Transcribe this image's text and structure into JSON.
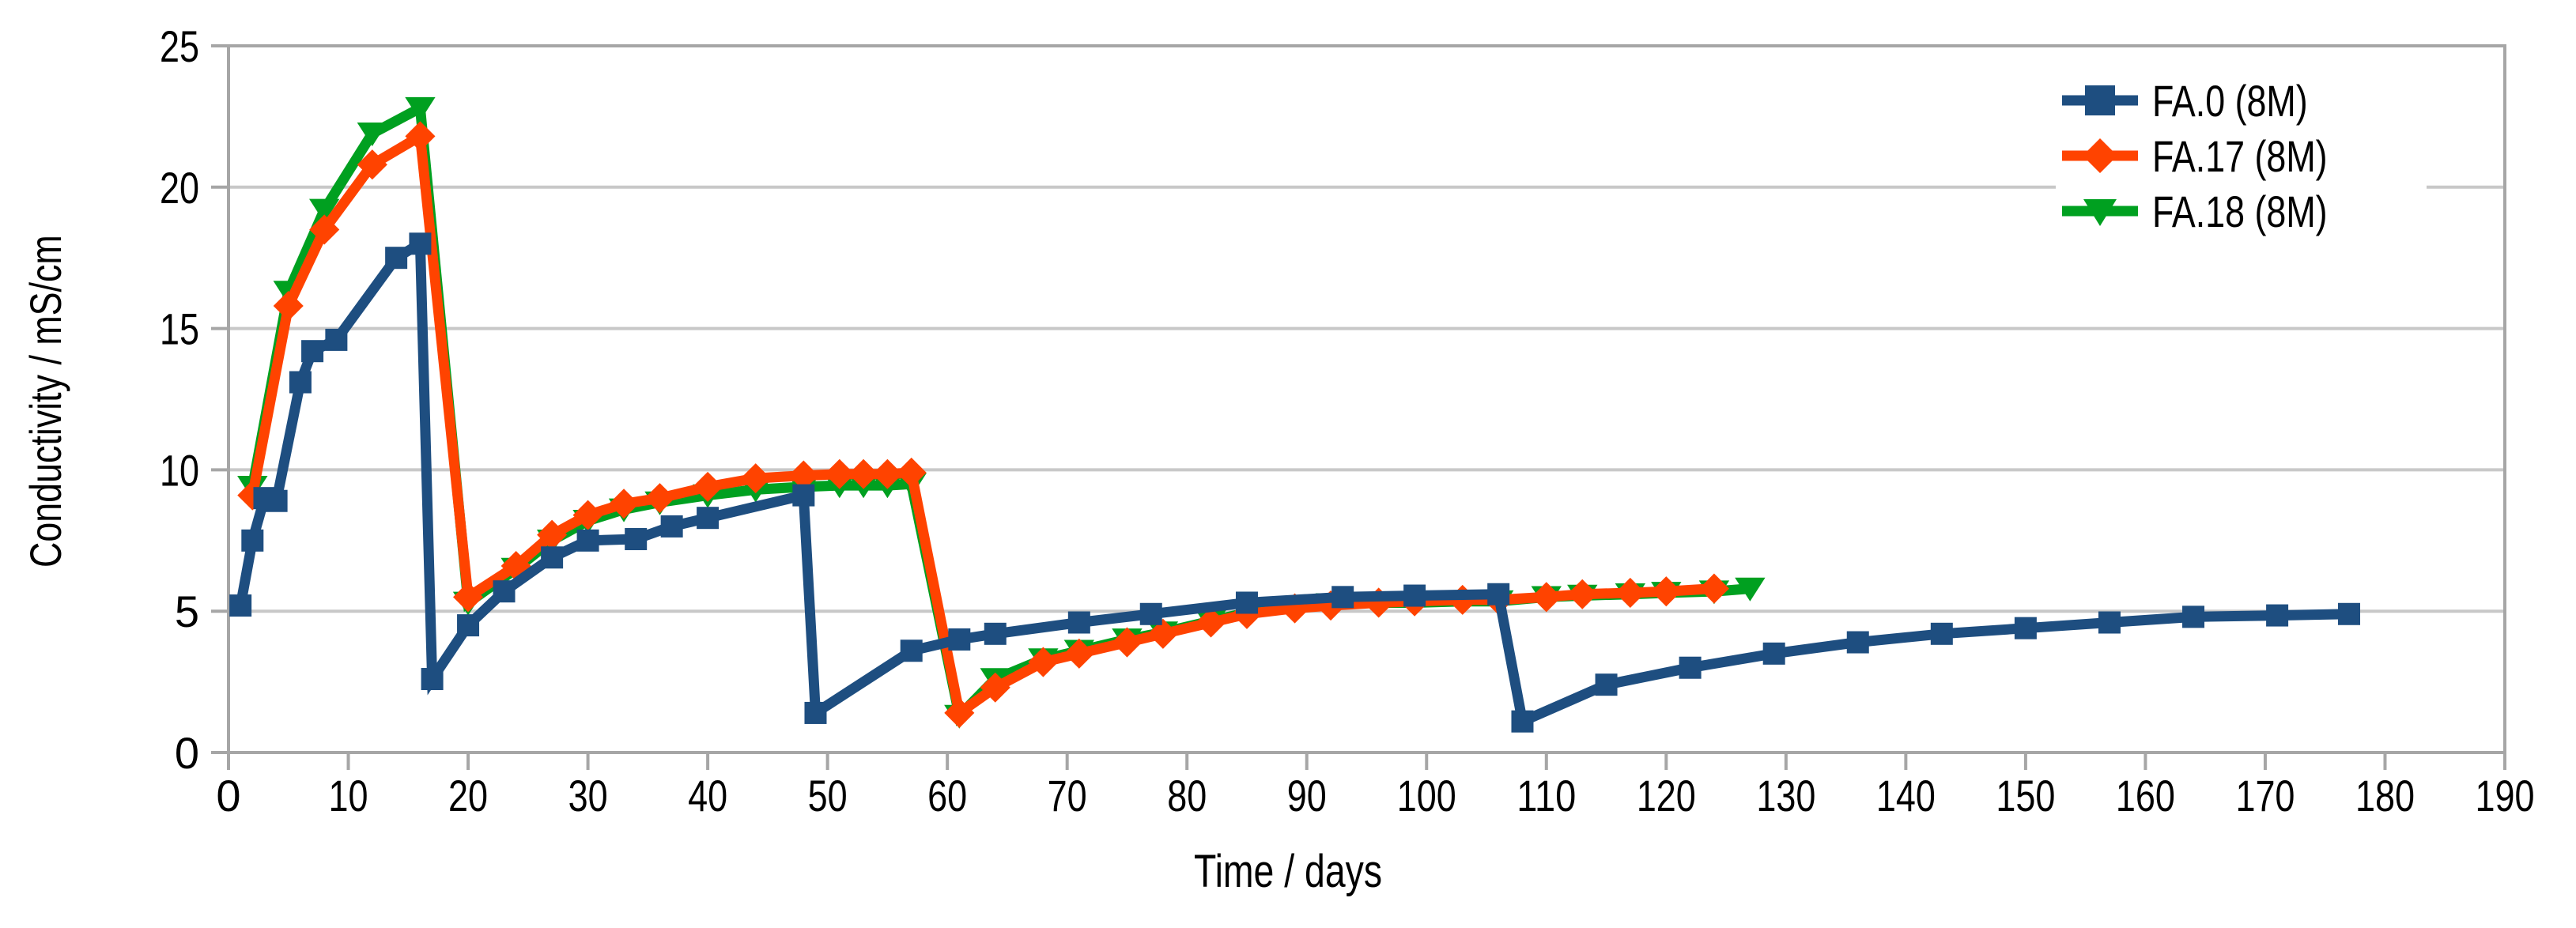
{
  "chart_data": {
    "type": "line",
    "title": "",
    "xlabel": "Time / days",
    "ylabel": "Conductivity / mS/cm",
    "xlim": [
      0,
      190
    ],
    "ylim": [
      0,
      25
    ],
    "x_ticks": [
      0,
      10,
      20,
      30,
      40,
      50,
      60,
      70,
      80,
      90,
      100,
      110,
      120,
      130,
      140,
      150,
      160,
      170,
      180,
      190
    ],
    "y_ticks": [
      0,
      5,
      10,
      15,
      20,
      25
    ],
    "grid": "horizontal-only",
    "legend_position": "top-right-inside",
    "series": [
      {
        "name": "FA.0 (8M)",
        "color": "#1E4E80",
        "marker": "square",
        "points": [
          [
            1,
            5.2
          ],
          [
            2,
            7.5
          ],
          [
            3,
            9.0
          ],
          [
            4,
            8.9
          ],
          [
            6,
            13.1
          ],
          [
            7,
            14.2
          ],
          [
            9,
            14.6
          ],
          [
            14,
            17.5
          ],
          [
            16,
            18.0
          ],
          [
            17,
            2.6
          ],
          [
            20,
            4.5
          ],
          [
            23,
            5.7
          ],
          [
            27,
            6.9
          ],
          [
            30,
            7.5
          ],
          [
            34,
            7.55
          ],
          [
            37,
            8.0
          ],
          [
            40,
            8.3
          ],
          [
            48,
            9.1
          ],
          [
            49,
            1.4
          ],
          [
            57,
            3.6
          ],
          [
            61,
            4.0
          ],
          [
            64,
            4.2
          ],
          [
            71,
            4.6
          ],
          [
            77,
            4.9
          ],
          [
            85,
            5.3
          ],
          [
            93,
            5.5
          ],
          [
            99,
            5.55
          ],
          [
            106,
            5.6
          ],
          [
            108,
            1.1
          ],
          [
            115,
            2.4
          ],
          [
            122,
            3.0
          ],
          [
            129,
            3.5
          ],
          [
            136,
            3.9
          ],
          [
            143,
            4.2
          ],
          [
            150,
            4.4
          ],
          [
            157,
            4.6
          ],
          [
            164,
            4.8
          ],
          [
            171,
            4.85
          ],
          [
            177,
            4.9
          ]
        ]
      },
      {
        "name": "FA.17 (8M)",
        "color": "#FF4300",
        "marker": "diamond",
        "points": [
          [
            2,
            9.1
          ],
          [
            5,
            15.8
          ],
          [
            8,
            18.5
          ],
          [
            12,
            20.8
          ],
          [
            16,
            21.8
          ],
          [
            20,
            5.5
          ],
          [
            24,
            6.6
          ],
          [
            27,
            7.7
          ],
          [
            30,
            8.4
          ],
          [
            33,
            8.8
          ],
          [
            36,
            9.0
          ],
          [
            40,
            9.4
          ],
          [
            44,
            9.7
          ],
          [
            48,
            9.8
          ],
          [
            51,
            9.85
          ],
          [
            53,
            9.85
          ],
          [
            55,
            9.85
          ],
          [
            57,
            9.9
          ],
          [
            61,
            1.4
          ],
          [
            64,
            2.3
          ],
          [
            68,
            3.2
          ],
          [
            71,
            3.5
          ],
          [
            75,
            3.9
          ],
          [
            78,
            4.2
          ],
          [
            82,
            4.6
          ],
          [
            85,
            4.9
          ],
          [
            89,
            5.1
          ],
          [
            92,
            5.2
          ],
          [
            96,
            5.3
          ],
          [
            99,
            5.35
          ],
          [
            103,
            5.4
          ],
          [
            106,
            5.4
          ],
          [
            110,
            5.5
          ],
          [
            113,
            5.6
          ],
          [
            117,
            5.65
          ],
          [
            120,
            5.7
          ],
          [
            124,
            5.8
          ]
        ]
      },
      {
        "name": "FA.18 (8M)",
        "color": "#00A020",
        "marker": "triangle-down",
        "points": [
          [
            2,
            9.4
          ],
          [
            5,
            16.3
          ],
          [
            8,
            19.2
          ],
          [
            12,
            21.9
          ],
          [
            16,
            22.8
          ],
          [
            20,
            5.3
          ],
          [
            24,
            6.5
          ],
          [
            27,
            7.5
          ],
          [
            30,
            8.2
          ],
          [
            33,
            8.6
          ],
          [
            36,
            8.85
          ],
          [
            40,
            9.1
          ],
          [
            44,
            9.3
          ],
          [
            48,
            9.4
          ],
          [
            51,
            9.45
          ],
          [
            53,
            9.45
          ],
          [
            55,
            9.45
          ],
          [
            57,
            9.5
          ],
          [
            61,
            1.3
          ],
          [
            64,
            2.6
          ],
          [
            68,
            3.3
          ],
          [
            71,
            3.6
          ],
          [
            75,
            4.0
          ],
          [
            78,
            4.25
          ],
          [
            82,
            4.65
          ],
          [
            85,
            4.95
          ],
          [
            89,
            5.15
          ],
          [
            92,
            5.25
          ],
          [
            96,
            5.3
          ],
          [
            99,
            5.3
          ],
          [
            103,
            5.35
          ],
          [
            106,
            5.35
          ],
          [
            110,
            5.5
          ],
          [
            113,
            5.55
          ],
          [
            117,
            5.6
          ],
          [
            120,
            5.65
          ],
          [
            124,
            5.7
          ],
          [
            127,
            5.8
          ]
        ]
      }
    ]
  },
  "colors": {
    "background": "#FFFFFF",
    "gridline": "#C8C8C8",
    "axis": "#A6A6A6",
    "text": "#000000"
  }
}
